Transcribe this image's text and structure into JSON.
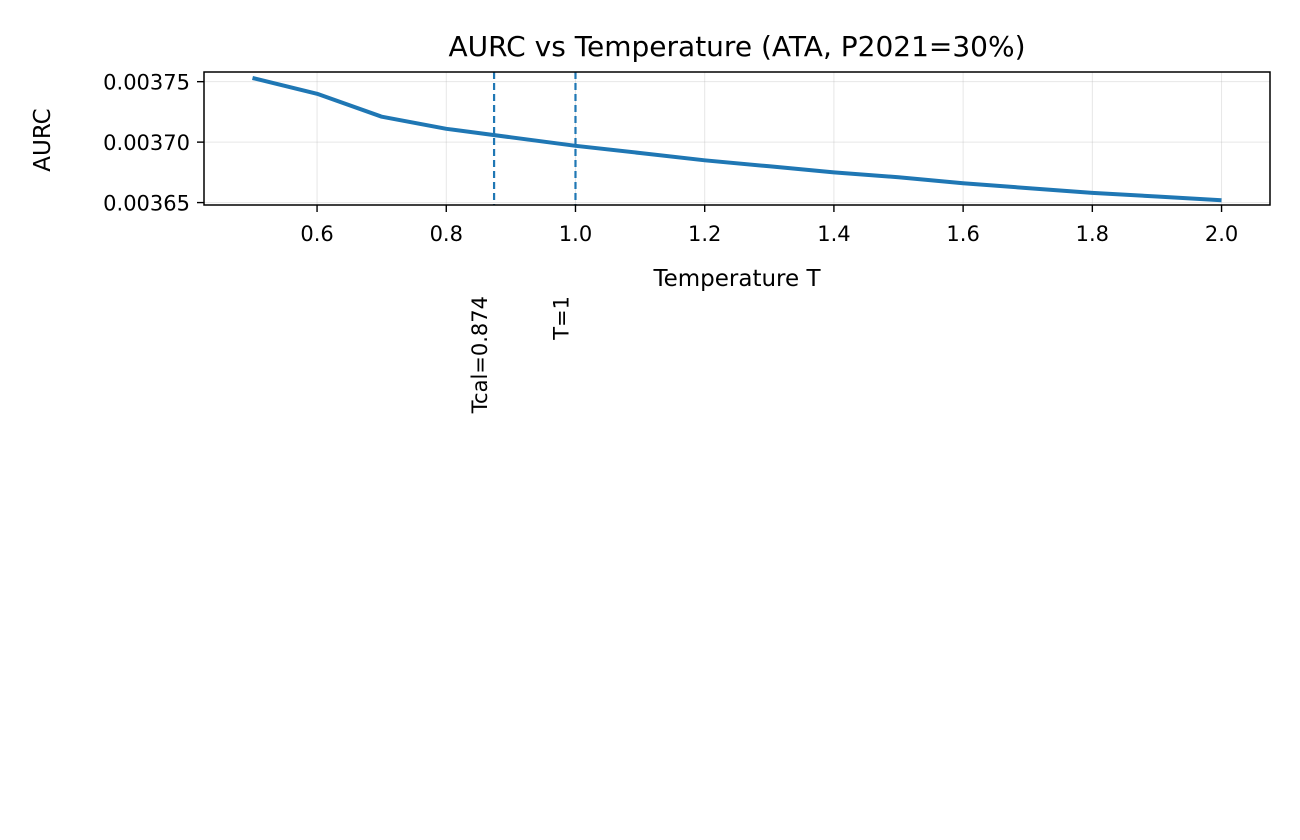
{
  "chart_data": {
    "type": "line",
    "title": "AURC vs Temperature (ATA, P2021=30%)",
    "xlabel": "Temperature T",
    "ylabel": "AURC",
    "xlim": [
      0.425,
      2.075
    ],
    "ylim": [
      0.003648,
      0.003758
    ],
    "grid": true,
    "xticks": [
      0.6,
      0.8,
      1.0,
      1.2,
      1.4,
      1.6,
      1.8,
      2.0
    ],
    "xtick_labels": [
      "0.6",
      "0.8",
      "1.0",
      "1.2",
      "1.4",
      "1.6",
      "1.8",
      "2.0"
    ],
    "yticks": [
      0.00365,
      0.0037,
      0.00375
    ],
    "ytick_labels": [
      "0.00365",
      "0.00370",
      "0.00375"
    ],
    "series": [
      {
        "color": "#1f77b4",
        "x": [
          0.5,
          0.6,
          0.7,
          0.8,
          0.9,
          1.0,
          1.1,
          1.2,
          1.3,
          1.4,
          1.5,
          1.6,
          1.7,
          1.8,
          1.9,
          2.0
        ],
        "y": [
          0.003753,
          0.00374,
          0.003721,
          0.003711,
          0.003704,
          0.003697,
          0.003691,
          0.003685,
          0.00368,
          0.003675,
          0.003671,
          0.003666,
          0.003662,
          0.003658,
          0.003655,
          0.003652
        ]
      }
    ],
    "vlines": [
      {
        "x": 0.874,
        "label": "Tcal=0.874",
        "color": "#1f77b4",
        "style": "dashed"
      },
      {
        "x": 1.0,
        "label": "T=1",
        "color": "#1f77b4",
        "style": "dashed"
      }
    ]
  }
}
